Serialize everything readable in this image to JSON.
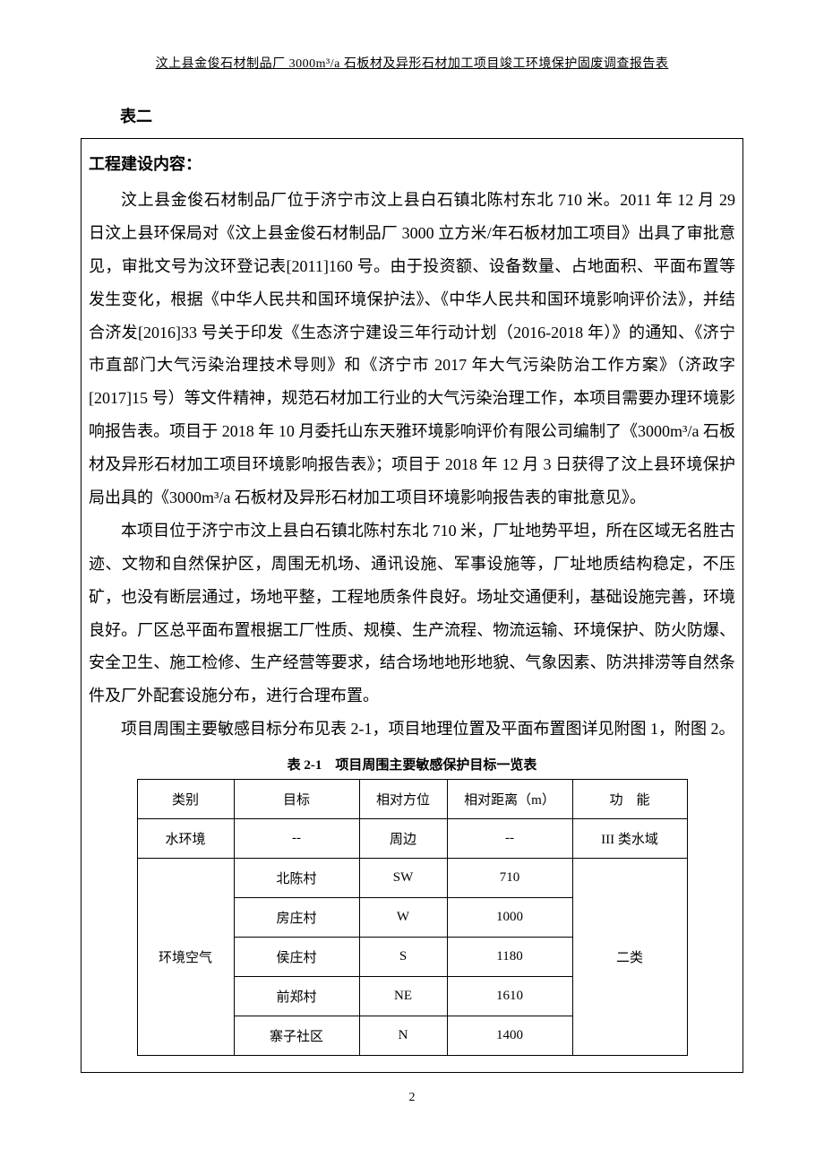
{
  "header": {
    "title": "汶上县金俊石材制品厂 3000m³/a 石板材及异形石材加工项目竣工环境保护固废调查报告表"
  },
  "section_label": "表二",
  "subsection_title": "工程建设内容：",
  "paragraphs": {
    "p1": "汶上县金俊石材制品厂位于济宁市汶上县白石镇北陈村东北 710 米。2011 年 12 月 29 日汶上县环保局对《汶上县金俊石材制品厂 3000 立方米/年石板材加工项目》出具了审批意见，审批文号为汶环登记表[2011]160 号。由于投资额、设备数量、占地面积、平面布置等发生变化，根据《中华人民共和国环境保护法》、《中华人民共和国环境影响评价法》，并结合济发[2016]33 号关于印发《生态济宁建设三年行动计划（2016-2018 年）》的通知、《济宁市直部门大气污染治理技术导则》和《济宁市 2017 年大气污染防治工作方案》（济政字[2017]15 号）等文件精神，规范石材加工行业的大气污染治理工作，本项目需要办理环境影响报告表。项目于 2018 年 10 月委托山东天雅环境影响评价有限公司编制了《3000m³/a 石板材及异形石材加工项目环境影响报告表》；项目于 2018 年 12 月 3 日获得了汶上县环境保护局出具的《3000m³/a 石板材及异形石材加工项目环境影响报告表的审批意见》。",
    "p2": "本项目位于济宁市汶上县白石镇北陈村东北 710 米，厂址地势平坦，所在区域无名胜古迹、文物和自然保护区，周围无机场、通讯设施、军事设施等，厂址地质结构稳定，不压矿，也没有断层通过，场地平整，工程地质条件良好。场址交通便利，基础设施完善，环境良好。厂区总平面布置根据工厂性质、规模、生产流程、物流运输、环境保护、防火防爆、安全卫生、施工检修、生产经营等要求，结合场地地形地貌、气象因素、防洪排涝等自然条件及厂外配套设施分布，进行合理布置。",
    "p3": "项目周围主要敏感目标分布见表 2-1，项目地理位置及平面布置图详见附图 1，附图 2。"
  },
  "table": {
    "caption": "表 2-1　项目周围主要敏感保护目标一览表",
    "columns": [
      "类别",
      "目标",
      "相对方位",
      "相对距离（m）",
      "功　能"
    ],
    "rows": [
      {
        "cat": "水环境",
        "target": "--",
        "dir": "周边",
        "dist": "--",
        "func": "III 类水域"
      },
      {
        "cat": "环境空气",
        "target": "北陈村",
        "dir": "SW",
        "dist": "710",
        "func": "二类"
      },
      {
        "cat": "",
        "target": "房庄村",
        "dir": "W",
        "dist": "1000",
        "func": ""
      },
      {
        "cat": "",
        "target": "侯庄村",
        "dir": "S",
        "dist": "1180",
        "func": ""
      },
      {
        "cat": "",
        "target": "前郑村",
        "dir": "NE",
        "dist": "1610",
        "func": ""
      },
      {
        "cat": "",
        "target": "寨子社区",
        "dir": "N",
        "dist": "1400",
        "func": ""
      }
    ]
  },
  "page_number": "2"
}
